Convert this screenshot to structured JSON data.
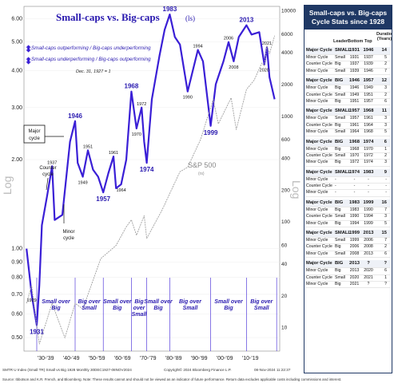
{
  "chart_data": {
    "type": "line",
    "title": "Small-caps vs. Big-caps",
    "title_suffix": "(ls)",
    "ylabel_left": "Log",
    "ylabel_right": "Log",
    "y_left_ticks": [
      "6.00",
      "5.00",
      "4.00",
      "3.00",
      "2.00",
      "1.00",
      "0.90",
      "0.80",
      "0.70",
      "0.60",
      "0.50"
    ],
    "y_left_tick_values": [
      6,
      5,
      4,
      3,
      2,
      1,
      0.9,
      0.8,
      0.7,
      0.6,
      0.5
    ],
    "y_left_range": [
      0.45,
      6.6
    ],
    "y_right_ticks": [
      "10000",
      "6000",
      "4000",
      "2000",
      "1000",
      "600",
      "400",
      "200",
      "100",
      "60",
      "40",
      "20",
      "10"
    ],
    "y_right_tick_values": [
      10000,
      6000,
      4000,
      2000,
      1000,
      600,
      400,
      200,
      100,
      60,
      40,
      20,
      10
    ],
    "y_right_range": [
      6,
      11000
    ],
    "x_range": [
      1926,
      2026
    ],
    "x_ticks": [
      "'30-'39",
      "'40-'49",
      "'50-'59",
      "'60-'69",
      "'70-'79",
      "'80-'89",
      "'90-'99",
      "'00-'09",
      "'10-'19"
    ],
    "x_tick_positions": [
      1934.5,
      1944.5,
      1954.5,
      1964.5,
      1974.5,
      1984.5,
      1994.5,
      2004.5,
      2014.5
    ],
    "legend": [
      {
        "text": "Small-caps outperforming / Big-caps underperforming",
        "arrow": "up"
      },
      {
        "text": "Small-caps underperforming / Big-caps outperforming",
        "arrow": "down"
      }
    ],
    "base_note": "Dec. 31, 1927 = 1",
    "series": [
      {
        "name": "Small-caps vs. Big-caps",
        "axis": "left",
        "color": "#3a1fd6",
        "x": [
          1927,
          1929,
          1931,
          1932,
          1933,
          1935,
          1937,
          1938,
          1941,
          1944,
          1946,
          1947,
          1949,
          1951,
          1953,
          1955,
          1957,
          1959,
          1961,
          1962,
          1964,
          1966,
          1968,
          1970,
          1972,
          1973,
          1974,
          1976,
          1979,
          1981,
          1983,
          1985,
          1987,
          1990,
          1992,
          1994,
          1996,
          1999,
          2001,
          2004,
          2006,
          2008,
          2010,
          2013,
          2015,
          2018,
          2020,
          2021,
          2022,
          2024
        ],
        "y": [
          1.0,
          0.7,
          0.55,
          0.75,
          1.2,
          1.5,
          1.9,
          1.25,
          1.3,
          2.3,
          2.7,
          1.95,
          1.75,
          2.15,
          1.85,
          1.75,
          1.55,
          1.8,
          2.05,
          1.6,
          1.65,
          2.0,
          3.4,
          2.55,
          3.0,
          2.3,
          1.95,
          3.2,
          4.5,
          5.5,
          6.2,
          5.2,
          4.9,
          3.4,
          4.0,
          4.7,
          4.3,
          2.6,
          3.6,
          4.3,
          5.0,
          4.3,
          5.2,
          5.7,
          5.3,
          5.4,
          4.2,
          4.8,
          3.8,
          3.2
        ]
      },
      {
        "name": "S&P 500",
        "label_suffix": "(rs)",
        "axis": "right",
        "color": "#a0a0a0",
        "x": [
          1927,
          1929,
          1932,
          1937,
          1942,
          1946,
          1949,
          1956,
          1962,
          1966,
          1968,
          1970,
          1973,
          1974,
          1980,
          1987,
          1990,
          1995,
          2000,
          2002,
          2007,
          2009,
          2013,
          2016,
          2019,
          2020,
          2021,
          2022,
          2024
        ],
        "y": [
          17,
          25,
          7,
          17,
          8,
          17,
          15,
          45,
          60,
          90,
          105,
          75,
          115,
          70,
          130,
          300,
          330,
          600,
          1450,
          850,
          1500,
          750,
          1800,
          2200,
          3200,
          3000,
          4700,
          3900,
          5800
        ]
      }
    ],
    "annotations": {
      "peaks": [
        {
          "text": "1983",
          "x": 1983,
          "y": 6.2
        },
        {
          "text": "1968",
          "x": 1968,
          "y": 3.4
        },
        {
          "text": "1946",
          "x": 1946,
          "y": 2.7
        },
        {
          "text": "2013",
          "x": 2013,
          "y": 5.7
        },
        {
          "text": "1931",
          "x": 1931,
          "y": 0.55
        },
        {
          "text": "1974",
          "x": 1974,
          "y": 1.95
        },
        {
          "text": "1999",
          "x": 1999,
          "y": 2.6
        },
        {
          "text": "1957",
          "x": 1957,
          "y": 1.55
        }
      ],
      "minor": [
        {
          "text": "1937",
          "x": 1937,
          "y": 1.9
        },
        {
          "text": "1929",
          "x": 1929,
          "y": 0.7
        },
        {
          "text": "1951",
          "x": 1951,
          "y": 2.15
        },
        {
          "text": "1949",
          "x": 1949,
          "y": 1.75
        },
        {
          "text": "1961",
          "x": 1961,
          "y": 2.05
        },
        {
          "text": "1964",
          "x": 1964,
          "y": 1.65
        },
        {
          "text": "1970",
          "x": 1970,
          "y": 2.55
        },
        {
          "text": "1972",
          "x": 1972,
          "y": 3.0
        },
        {
          "text": "1990",
          "x": 1990,
          "y": 3.4
        },
        {
          "text": "1994",
          "x": 1994,
          "y": 4.7
        },
        {
          "text": "2006",
          "x": 2006,
          "y": 5.0
        },
        {
          "text": "2008",
          "x": 2008,
          "y": 4.3
        },
        {
          "text": "2020",
          "x": 2020,
          "y": 4.2
        },
        {
          "text": "2021",
          "x": 2021,
          "y": 4.8
        }
      ],
      "major_cycle": "Major cycle",
      "counter_cycle": "Counter cycle",
      "minor_cycle": "Minor cycle",
      "sp500_label": "S&P 500"
    },
    "regimes": [
      {
        "text": "Small over Big",
        "from": 1931,
        "to": 1946
      },
      {
        "text": "Big over Small",
        "from": 1946,
        "to": 1957
      },
      {
        "text": "Small over Big",
        "from": 1957,
        "to": 1968
      },
      {
        "text": "Big over Small",
        "from": 1968,
        "to": 1974
      },
      {
        "text": "Small over Big",
        "from": 1974,
        "to": 1983
      },
      {
        "text": "Big over Small",
        "from": 1983,
        "to": 1999
      },
      {
        "text": "Small over Big",
        "from": 1999,
        "to": 2013
      },
      {
        "text": "Big over Small",
        "from": 2013,
        "to": 2024.8
      }
    ]
  },
  "sidebar": {
    "title": "Small-caps vs. Big-caps Cycle Stats since 1928",
    "col_leader": "Leader",
    "col_bottom": "Bottom",
    "col_top": "Top",
    "col_duration": "Duration (Years)",
    "cycles": [
      {
        "rows": [
          {
            "type": "Major Cycle",
            "leader": "SMALL",
            "bottom": "1931",
            "top": "1946",
            "dur": "14",
            "major": true
          },
          {
            "type": "Minor Cycle",
            "leader": "Small",
            "bottom": "1931",
            "top": "1937",
            "dur": "5"
          },
          {
            "type": "Counter Cycle",
            "leader": "Big",
            "bottom": "1937",
            "top": "1939",
            "dur": "2"
          },
          {
            "type": "Minor Cycle",
            "leader": "Small",
            "bottom": "1939",
            "top": "1946",
            "dur": "7"
          }
        ]
      },
      {
        "rows": [
          {
            "type": "Major Cycle",
            "leader": "BIG",
            "bottom": "1946",
            "top": "1957",
            "dur": "12",
            "major": true
          },
          {
            "type": "Minor Cycle",
            "leader": "Big",
            "bottom": "1946",
            "top": "1949",
            "dur": "3"
          },
          {
            "type": "Counter Cycle",
            "leader": "Small",
            "bottom": "1949",
            "top": "1951",
            "dur": "2"
          },
          {
            "type": "Minor Cycle",
            "leader": "Big",
            "bottom": "1951",
            "top": "1957",
            "dur": "6"
          }
        ]
      },
      {
        "rows": [
          {
            "type": "Major Cycle",
            "leader": "SMALL",
            "bottom": "1957",
            "top": "1968",
            "dur": "11",
            "major": true
          },
          {
            "type": "Minor Cycle",
            "leader": "Small",
            "bottom": "1957",
            "top": "1961",
            "dur": "3"
          },
          {
            "type": "Counter Cycle",
            "leader": "Big",
            "bottom": "1961",
            "top": "1964",
            "dur": "3"
          },
          {
            "type": "Minor Cycle",
            "leader": "Small",
            "bottom": "1964",
            "top": "1968",
            "dur": "5"
          }
        ]
      },
      {
        "rows": [
          {
            "type": "Major Cycle",
            "leader": "BIG",
            "bottom": "1968",
            "top": "1974",
            "dur": "6",
            "major": true
          },
          {
            "type": "Minor Cycle",
            "leader": "Big",
            "bottom": "1968",
            "top": "1970",
            "dur": "1"
          },
          {
            "type": "Counter Cycle",
            "leader": "Small",
            "bottom": "1970",
            "top": "1972",
            "dur": "2"
          },
          {
            "type": "Minor Cycle",
            "leader": "Big",
            "bottom": "1972",
            "top": "1974",
            "dur": "3"
          }
        ]
      },
      {
        "rows": [
          {
            "type": "Major Cycle",
            "leader": "SMALL",
            "bottom": "1974",
            "top": "1983",
            "dur": "9",
            "major": true
          },
          {
            "type": "Minor Cycle",
            "leader": "-",
            "bottom": "-",
            "top": "-",
            "dur": "-"
          },
          {
            "type": "Counter Cycle",
            "leader": "-",
            "bottom": "-",
            "top": "-",
            "dur": "-"
          },
          {
            "type": "Minor Cycle",
            "leader": "-",
            "bottom": "-",
            "top": "-",
            "dur": "-"
          }
        ]
      },
      {
        "rows": [
          {
            "type": "Major Cycle",
            "leader": "BIG",
            "bottom": "1983",
            "top": "1999",
            "dur": "16",
            "major": true
          },
          {
            "type": "Minor Cycle",
            "leader": "Big",
            "bottom": "1983",
            "top": "1990",
            "dur": "7"
          },
          {
            "type": "Counter Cycle",
            "leader": "Small",
            "bottom": "1990",
            "top": "1994",
            "dur": "3"
          },
          {
            "type": "Minor Cycle",
            "leader": "Big",
            "bottom": "1994",
            "top": "1999",
            "dur": "5"
          }
        ]
      },
      {
        "rows": [
          {
            "type": "Major Cycle",
            "leader": "SMALL",
            "bottom": "1999",
            "top": "2013",
            "dur": "15",
            "major": true
          },
          {
            "type": "Minor Cycle",
            "leader": "Small",
            "bottom": "1999",
            "top": "2006",
            "dur": "7"
          },
          {
            "type": "Counter Cycle",
            "leader": "Big",
            "bottom": "2006",
            "top": "2008",
            "dur": "2"
          },
          {
            "type": "Minor Cycle",
            "leader": "Small",
            "bottom": "2008",
            "top": "2013",
            "dur": "6"
          }
        ]
      },
      {
        "rows": [
          {
            "type": "Major Cycle",
            "leader": "BIG",
            "bottom": "2013",
            "top": "?",
            "dur": "?",
            "major": true
          },
          {
            "type": "Minor Cycle",
            "leader": "Big",
            "bottom": "2013",
            "top": "2020",
            "dur": "6"
          },
          {
            "type": "Counter Cycle",
            "leader": "Small",
            "bottom": "2020",
            "top": "2021",
            "dur": "1"
          },
          {
            "type": "Minor Cycle",
            "leader": "Big",
            "bottom": "2021",
            "top": "?",
            "dur": "?"
          }
        ]
      }
    ]
  },
  "footer": {
    "line1": "SMTR U Index (Small TR) Small vs Big 1928  Monthly 30DEC1927-08NOV2024",
    "copyright": "Copyright© 2024 Bloomberg Finance L.P.",
    "date": "08-Nov-2024 11:22:37",
    "line2": "Source: Ibbotson and K.R. French, and Bloomberg. Note: These results cannot and should not be viewed as an indicator of future performance. Return data excludes applicable costs including commissions and interest."
  },
  "colors": {
    "ratio_line": "#3a1fd6",
    "sp500_line": "#a0a0a0",
    "header_bg": "#1f3864",
    "label_blue": "#2a1ab0"
  }
}
